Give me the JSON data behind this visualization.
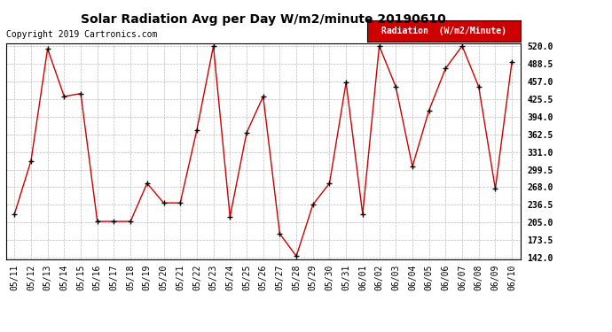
{
  "title": "Solar Radiation Avg per Day W/m2/minute 20190610",
  "copyright": "Copyright 2019 Cartronics.com",
  "legend_label": "Radiation  (W/m2/Minute)",
  "dates": [
    "05/11",
    "05/12",
    "05/13",
    "05/14",
    "05/15",
    "05/16",
    "05/17",
    "05/18",
    "05/19",
    "05/20",
    "05/21",
    "05/22",
    "05/23",
    "05/24",
    "05/25",
    "05/26",
    "05/27",
    "05/28",
    "05/29",
    "05/30",
    "05/31",
    "06/01",
    "06/02",
    "06/03",
    "06/04",
    "06/05",
    "06/06",
    "06/07",
    "06/08",
    "06/09",
    "06/10"
  ],
  "values": [
    220,
    315,
    515,
    430,
    435,
    207,
    207,
    207,
    275,
    240,
    240,
    370,
    520,
    215,
    365,
    430,
    185,
    145,
    237,
    275,
    455,
    220,
    520,
    447,
    305,
    405,
    480,
    520,
    447,
    265,
    492
  ],
  "line_color": "#cc0000",
  "marker_color": "#000000",
  "bg_color": "#ffffff",
  "grid_color": "#bbbbbb",
  "ymin": 142.0,
  "ymax": 520.0,
  "yticks": [
    142.0,
    173.5,
    205.0,
    236.5,
    268.0,
    299.5,
    331.0,
    362.5,
    394.0,
    425.5,
    457.0,
    488.5,
    520.0
  ],
  "legend_bg": "#cc0000",
  "legend_fg": "#ffffff",
  "title_fontsize": 10,
  "copyright_fontsize": 7,
  "tick_fontsize": 7,
  "ytick_fontsize": 7
}
